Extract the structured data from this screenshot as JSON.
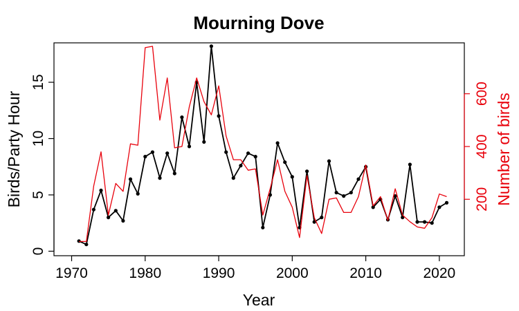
{
  "chart_data": {
    "type": "line",
    "title": "Mourning Dove",
    "xlabel": "Year",
    "ylabel": "Birds/Party Hour",
    "ylabel_right": "Number of birds",
    "xlim": [
      1967.6,
      2023.4
    ],
    "ylim": [
      -0.4,
      18.5
    ],
    "ylim_right": [
      -14,
      793
    ],
    "xticks": [
      1970,
      1980,
      1990,
      2000,
      2010,
      2020
    ],
    "yticks": [
      0,
      5,
      10,
      15
    ],
    "yticks_right": [
      200,
      400,
      600
    ],
    "colors": {
      "left": "#000000",
      "right": "#e8000b"
    },
    "series": [
      {
        "name": "Birds/Party Hour",
        "axis": "left",
        "markers": true,
        "x": [
          1971,
          1972,
          1973,
          1974,
          1975,
          1976,
          1977,
          1978,
          1979,
          1980,
          1981,
          1982,
          1983,
          1984,
          1985,
          1986,
          1987,
          1988,
          1989,
          1990,
          1991,
          1992,
          1993,
          1994,
          1995,
          1996,
          1997,
          1998,
          1999,
          2000,
          2001,
          2002,
          2003,
          2004,
          2005,
          2006,
          2007,
          2008,
          2009,
          2010,
          2011,
          2012,
          2013,
          2014,
          2015,
          2016,
          2017,
          2018,
          2019,
          2020,
          2021
        ],
        "y": [
          0.9,
          0.6,
          3.7,
          5.4,
          3.0,
          3.6,
          2.7,
          6.4,
          5.1,
          8.4,
          8.8,
          6.5,
          8.7,
          6.9,
          11.9,
          9.3,
          15.0,
          9.7,
          18.2,
          12.0,
          8.8,
          6.5,
          7.6,
          8.7,
          8.4,
          2.1,
          5.0,
          9.6,
          7.9,
          6.6,
          2.1,
          7.1,
          2.6,
          3.0,
          8.0,
          5.2,
          4.9,
          5.2,
          6.4,
          7.5,
          3.9,
          4.6,
          2.8,
          4.9,
          3.0,
          7.7,
          2.6,
          2.6,
          2.5,
          3.9,
          4.3
        ]
      },
      {
        "name": "Number of birds",
        "axis": "right",
        "markers": false,
        "x": [
          1971,
          1972,
          1973,
          1974,
          1975,
          1976,
          1977,
          1978,
          1979,
          1980,
          1981,
          1982,
          1983,
          1984,
          1985,
          1986,
          1987,
          1988,
          1989,
          1990,
          1991,
          1992,
          1993,
          1994,
          1995,
          1996,
          1997,
          1998,
          1999,
          2000,
          2001,
          2002,
          2003,
          2004,
          2005,
          2006,
          2007,
          2008,
          2009,
          2010,
          2011,
          2012,
          2013,
          2014,
          2015,
          2016,
          2017,
          2018,
          2019,
          2020,
          2021
        ],
        "y": [
          40,
          40,
          250,
          380,
          140,
          260,
          230,
          410,
          405,
          775,
          780,
          500,
          660,
          395,
          400,
          550,
          660,
          570,
          520,
          630,
          440,
          350,
          350,
          310,
          315,
          140,
          240,
          350,
          230,
          170,
          55,
          290,
          130,
          70,
          200,
          205,
          150,
          150,
          210,
          330,
          175,
          210,
          120,
          240,
          140,
          115,
          95,
          90,
          130,
          220,
          210
        ]
      }
    ]
  }
}
